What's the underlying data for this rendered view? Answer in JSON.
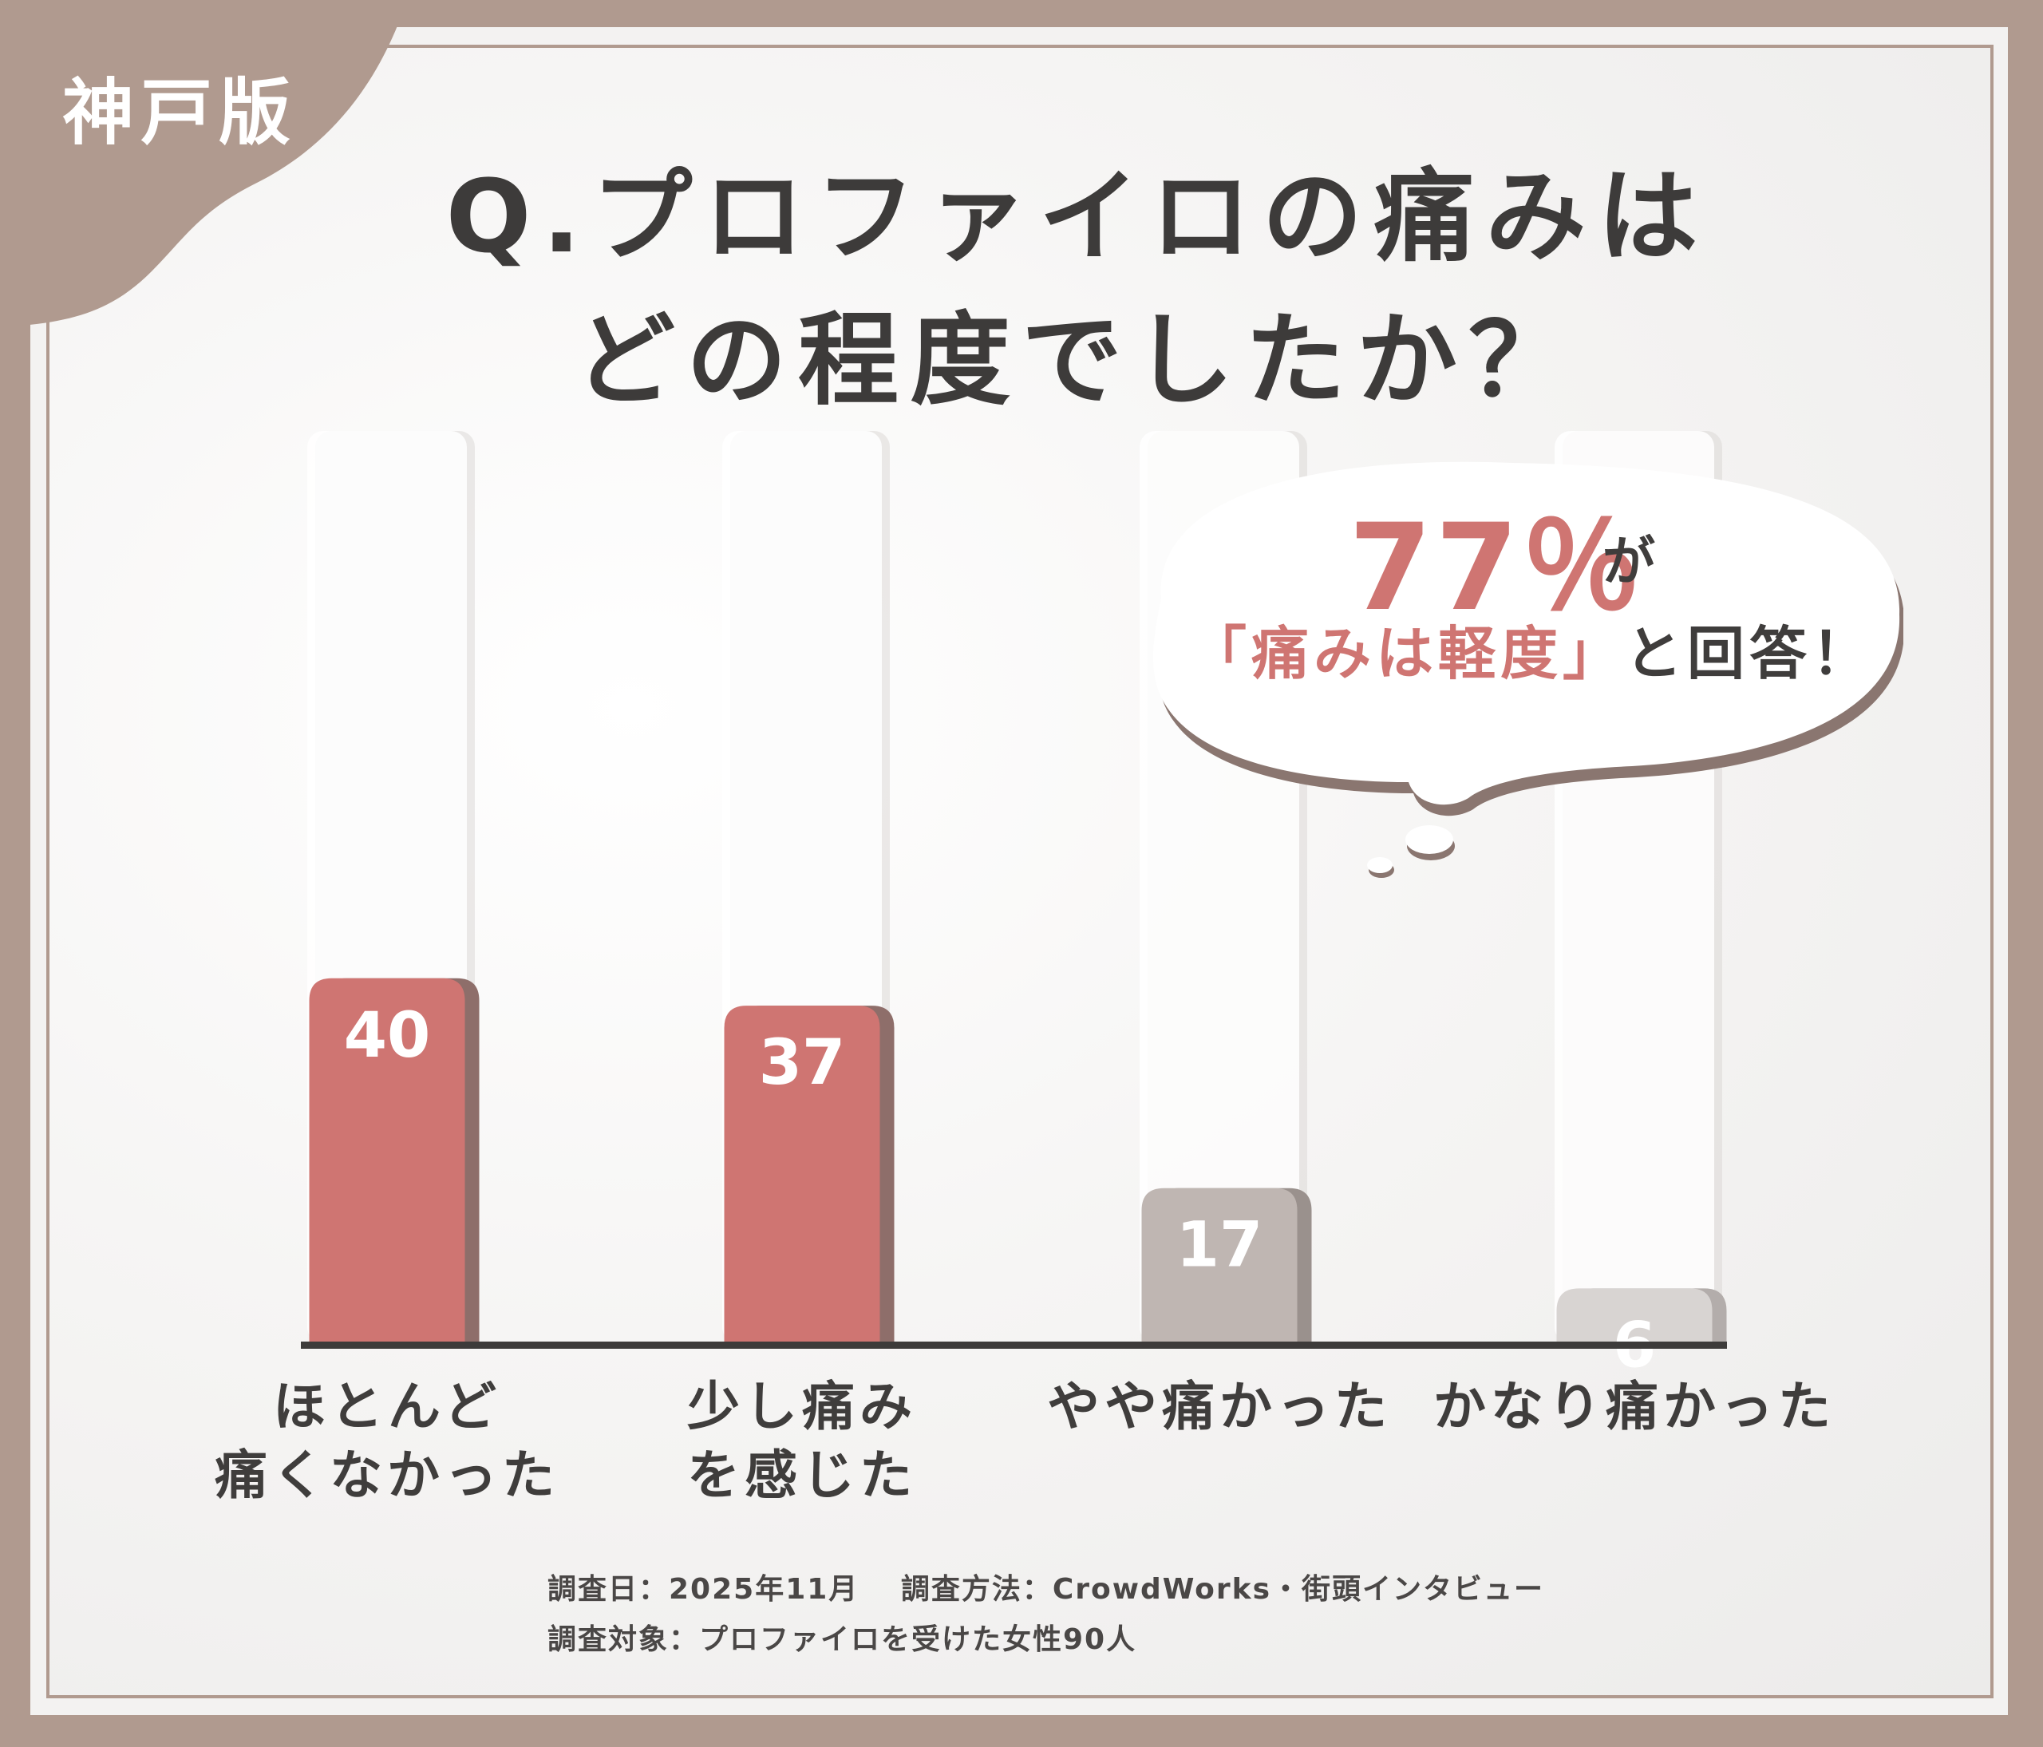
{
  "edition": "神戸版",
  "title_line1": "Q.プロファイロの痛みは",
  "title_line2": "どの程度でしたか？",
  "callout": {
    "big": "77％",
    "big_suffix": "が",
    "quote": "「痛みは軽度」",
    "rest": "と回答！"
  },
  "notes": {
    "line1": "調査日：2025年11月　 調査方法：CrowdWorks・街頭インタビュー",
    "line2": "調査対象：プロファイロを受けた女性90人"
  },
  "colors": {
    "frame": "#b09a8f",
    "highlight_bar": "#cf7572",
    "muted_bar_1": "#bfb6b2",
    "muted_bar_2": "#d8d4d2",
    "text": "#3d3b3a"
  },
  "chart_data": {
    "type": "bar",
    "categories": [
      [
        "ほとんど",
        "痛くなかった"
      ],
      [
        "少し痛み",
        "を感じた"
      ],
      [
        "やや痛かった"
      ],
      [
        "かなり痛かった"
      ]
    ],
    "values": [
      40,
      37,
      17,
      6
    ],
    "data_labels": [
      "40",
      "37",
      "17",
      "6"
    ],
    "ylim": [
      0,
      100
    ],
    "grid": false
  }
}
